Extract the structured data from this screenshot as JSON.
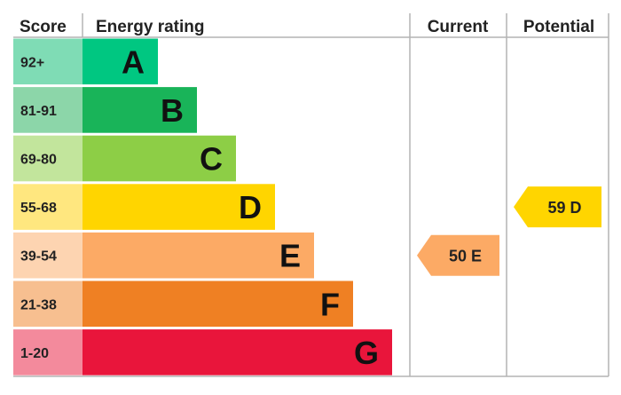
{
  "headers": {
    "score": "Score",
    "rating": "Energy rating",
    "current": "Current",
    "potential": "Potential"
  },
  "chart_data": {
    "type": "bar",
    "bands": [
      {
        "score": "92+",
        "letter": "A",
        "color": "#00c781",
        "scoreColor": "#7fdcb5"
      },
      {
        "score": "81-91",
        "letter": "B",
        "color": "#19b459",
        "scoreColor": "#8cd6a9"
      },
      {
        "score": "69-80",
        "letter": "C",
        "color": "#8dce46",
        "scoreColor": "#c2e59c"
      },
      {
        "score": "55-68",
        "letter": "D",
        "color": "#ffd500",
        "scoreColor": "#ffe77f"
      },
      {
        "score": "39-54",
        "letter": "E",
        "color": "#fcaa65",
        "scoreColor": "#fdd4b1"
      },
      {
        "score": "21-38",
        "letter": "F",
        "color": "#ef8023",
        "scoreColor": "#f7bf90"
      },
      {
        "score": "1-20",
        "letter": "G",
        "color": "#e9153b",
        "scoreColor": "#f38a9c"
      }
    ],
    "current": {
      "value": 50,
      "band": "E",
      "label": "50 E",
      "color": "#fcaa65"
    },
    "potential": {
      "value": 59,
      "band": "D",
      "label": "59 D",
      "color": "#ffd500"
    }
  }
}
